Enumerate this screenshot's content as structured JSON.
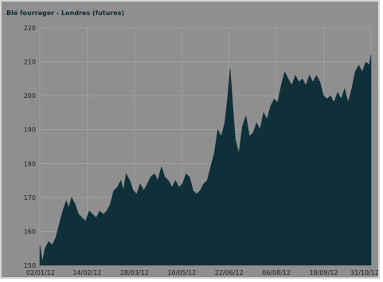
{
  "chart_data": {
    "type": "area",
    "title": "Blé fourrager - Londres (futures)",
    "xlabel": "",
    "ylabel": "",
    "ylim": [
      150,
      220
    ],
    "yticks": [
      150,
      160,
      170,
      180,
      190,
      200,
      210,
      220
    ],
    "xticks": [
      "02/01/12",
      "14/02/12",
      "28/03/12",
      "10/05/12",
      "22/06/12",
      "06/08/12",
      "18/09/12",
      "31/10/12"
    ],
    "grid": true,
    "fill_color": "#0f3039",
    "series": [
      {
        "name": "",
        "points": [
          [
            0,
            156
          ],
          [
            1.5,
            151
          ],
          [
            3,
            155
          ],
          [
            5,
            157
          ],
          [
            7,
            156
          ],
          [
            9,
            158
          ],
          [
            11,
            162
          ],
          [
            13,
            166
          ],
          [
            15,
            169
          ],
          [
            16.5,
            167
          ],
          [
            18,
            170
          ],
          [
            20,
            168
          ],
          [
            22,
            165
          ],
          [
            24,
            164
          ],
          [
            26,
            163
          ],
          [
            28,
            166
          ],
          [
            30,
            165
          ],
          [
            32,
            164
          ],
          [
            34,
            166
          ],
          [
            36,
            165
          ],
          [
            38,
            166
          ],
          [
            40,
            168
          ],
          [
            42,
            172
          ],
          [
            44,
            173
          ],
          [
            46,
            175
          ],
          [
            47.5,
            172
          ],
          [
            49,
            177
          ],
          [
            51,
            175
          ],
          [
            53,
            172
          ],
          [
            55,
            171
          ],
          [
            57,
            174
          ],
          [
            59,
            172
          ],
          [
            61,
            174
          ],
          [
            63,
            176
          ],
          [
            65,
            177
          ],
          [
            67,
            175
          ],
          [
            69,
            179
          ],
          [
            71,
            176
          ],
          [
            73,
            175
          ],
          [
            75,
            173
          ],
          [
            77,
            175
          ],
          [
            79,
            173
          ],
          [
            81,
            174
          ],
          [
            83,
            177
          ],
          [
            85,
            176
          ],
          [
            87,
            172
          ],
          [
            89,
            171
          ],
          [
            91,
            172
          ],
          [
            93,
            174
          ],
          [
            95,
            175
          ],
          [
            97,
            179
          ],
          [
            99,
            183
          ],
          [
            101,
            190
          ],
          [
            103,
            188
          ],
          [
            105,
            192
          ],
          [
            106.5,
            199
          ],
          [
            108,
            208
          ],
          [
            109.5,
            197
          ],
          [
            111,
            187
          ],
          [
            113,
            183
          ],
          [
            115,
            191
          ],
          [
            117,
            194
          ],
          [
            119,
            188
          ],
          [
            121,
            189
          ],
          [
            123,
            192
          ],
          [
            125,
            190
          ],
          [
            127,
            195
          ],
          [
            129,
            193
          ],
          [
            131,
            197
          ],
          [
            133,
            199
          ],
          [
            135,
            198
          ],
          [
            137,
            203
          ],
          [
            139,
            207
          ],
          [
            141,
            205
          ],
          [
            143,
            203
          ],
          [
            145,
            206
          ],
          [
            147,
            204
          ],
          [
            149,
            205
          ],
          [
            151,
            203
          ],
          [
            153,
            206
          ],
          [
            155,
            204
          ],
          [
            157,
            206
          ],
          [
            159,
            204
          ],
          [
            161,
            200
          ],
          [
            163,
            199
          ],
          [
            165,
            200
          ],
          [
            167,
            198
          ],
          [
            169,
            201
          ],
          [
            171,
            199
          ],
          [
            173,
            202
          ],
          [
            175,
            198
          ],
          [
            177,
            202
          ],
          [
            179,
            207
          ],
          [
            181,
            209
          ],
          [
            183,
            207
          ],
          [
            185,
            210
          ],
          [
            187,
            209
          ],
          [
            188,
            212
          ]
        ]
      }
    ]
  }
}
